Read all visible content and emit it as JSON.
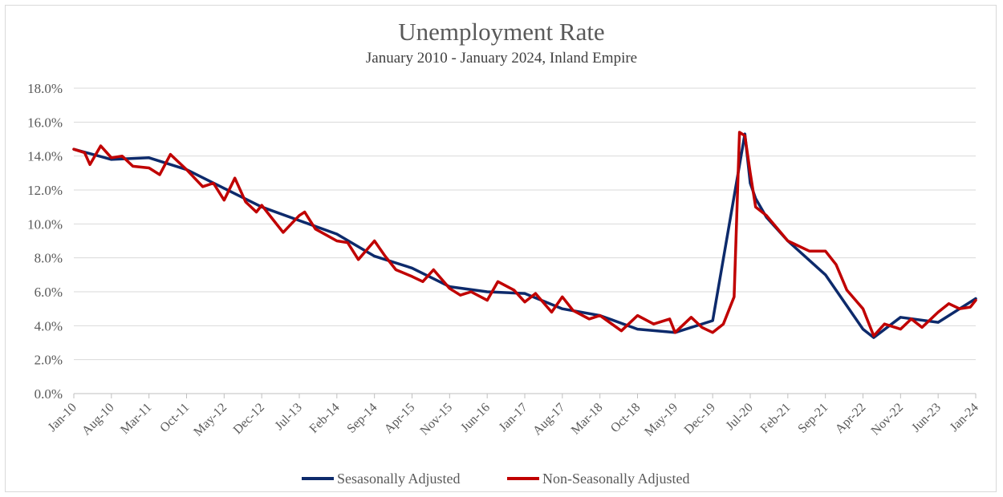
{
  "chart_data": {
    "type": "line",
    "title": "Unemployment Rate",
    "subtitle": "January 2010 - January 2024, Inland Empire",
    "xlabel": "",
    "ylabel": "",
    "ylim": [
      0,
      18
    ],
    "y_tick_labels": [
      "0.0%",
      "2.0%",
      "4.0%",
      "6.0%",
      "8.0%",
      "10.0%",
      "12.0%",
      "14.0%",
      "16.0%",
      "18.0%"
    ],
    "x_tick_labels": [
      "Jan-10",
      "Aug-10",
      "Mar-11",
      "Oct-11",
      "May-12",
      "Dec-12",
      "Jul-13",
      "Feb-14",
      "Sep-14",
      "Apr-15",
      "Nov-15",
      "Jun-16",
      "Jan-17",
      "Aug-17",
      "Mar-18",
      "Oct-18",
      "May-19",
      "Dec-19",
      "Jul-20",
      "Feb-21",
      "Sep-21",
      "Apr-22",
      "Nov-22",
      "Jun-23",
      "Jan-24"
    ],
    "grid": true,
    "legend_position": "bottom",
    "series": [
      {
        "name": "Sesasonally Adjusted",
        "color": "#0d2a6b",
        "x": [
          "Jan-10",
          "Aug-10",
          "Mar-11",
          "Oct-11",
          "May-12",
          "Dec-12",
          "Jul-13",
          "Feb-14",
          "Sep-14",
          "Apr-15",
          "Nov-15",
          "Jun-16",
          "Jan-17",
          "Aug-17",
          "Mar-18",
          "Oct-18",
          "May-19",
          "Dec-19",
          "Jun-20",
          "Jul-20",
          "Aug-20",
          "Oct-20",
          "Feb-21",
          "Sep-21",
          "Apr-22",
          "Jun-22",
          "Nov-22",
          "Jun-23",
          "Jan-24"
        ],
        "values": [
          14.4,
          13.8,
          13.9,
          13.2,
          12.1,
          11.0,
          10.2,
          9.4,
          8.1,
          7.4,
          6.3,
          6.0,
          5.9,
          5.0,
          4.6,
          3.8,
          3.6,
          4.3,
          15.3,
          12.4,
          11.5,
          10.4,
          9.0,
          7.0,
          3.8,
          3.3,
          4.5,
          4.2,
          5.6
        ]
      },
      {
        "name": "Non-Seasonally Adjusted",
        "color": "#c00000",
        "x": [
          "Jan-10",
          "Mar-10",
          "Apr-10",
          "Jun-10",
          "Aug-10",
          "Oct-10",
          "Dec-10",
          "Mar-11",
          "May-11",
          "Jul-11",
          "Oct-11",
          "Jan-12",
          "Mar-12",
          "May-12",
          "Jul-12",
          "Sep-12",
          "Nov-12",
          "Dec-12",
          "Feb-13",
          "Apr-13",
          "Jul-13",
          "Aug-13",
          "Oct-13",
          "Feb-14",
          "Apr-14",
          "Jun-14",
          "Sep-14",
          "Nov-14",
          "Jan-15",
          "Apr-15",
          "Jun-15",
          "Aug-15",
          "Nov-15",
          "Jan-16",
          "Mar-16",
          "Jun-16",
          "Aug-16",
          "Nov-16",
          "Jan-17",
          "Mar-17",
          "Jun-17",
          "Aug-17",
          "Oct-17",
          "Jan-18",
          "Mar-18",
          "Jul-18",
          "Oct-18",
          "Jan-19",
          "Apr-19",
          "May-19",
          "Aug-19",
          "Oct-19",
          "Dec-19",
          "Feb-20",
          "Apr-20",
          "May-20",
          "Jun-20",
          "Jul-20",
          "Aug-20",
          "Oct-20",
          "Feb-21",
          "Jun-21",
          "Sep-21",
          "Nov-21",
          "Jan-22",
          "Apr-22",
          "Jun-22",
          "Aug-22",
          "Nov-22",
          "Jan-23",
          "Mar-23",
          "Jun-23",
          "Aug-23",
          "Oct-23",
          "Dec-23",
          "Jan-24"
        ],
        "values": [
          14.4,
          14.2,
          13.5,
          14.6,
          13.9,
          14.0,
          13.4,
          13.3,
          12.9,
          14.1,
          13.2,
          12.2,
          12.4,
          11.4,
          12.7,
          11.3,
          10.7,
          11.1,
          10.3,
          9.5,
          10.5,
          10.7,
          9.7,
          9.0,
          8.9,
          7.9,
          9.0,
          8.1,
          7.3,
          6.9,
          6.6,
          7.3,
          6.2,
          5.8,
          6.0,
          5.5,
          6.6,
          6.1,
          5.4,
          5.9,
          4.8,
          5.7,
          4.9,
          4.4,
          4.6,
          3.7,
          4.6,
          4.1,
          4.4,
          3.6,
          4.5,
          3.9,
          3.6,
          4.1,
          5.7,
          15.4,
          15.2,
          13.0,
          11.0,
          10.5,
          9.0,
          8.4,
          8.4,
          7.6,
          6.1,
          5.0,
          3.4,
          4.1,
          3.8,
          4.4,
          3.9,
          4.8,
          5.3,
          5.0,
          5.1,
          5.5
        ]
      }
    ]
  }
}
